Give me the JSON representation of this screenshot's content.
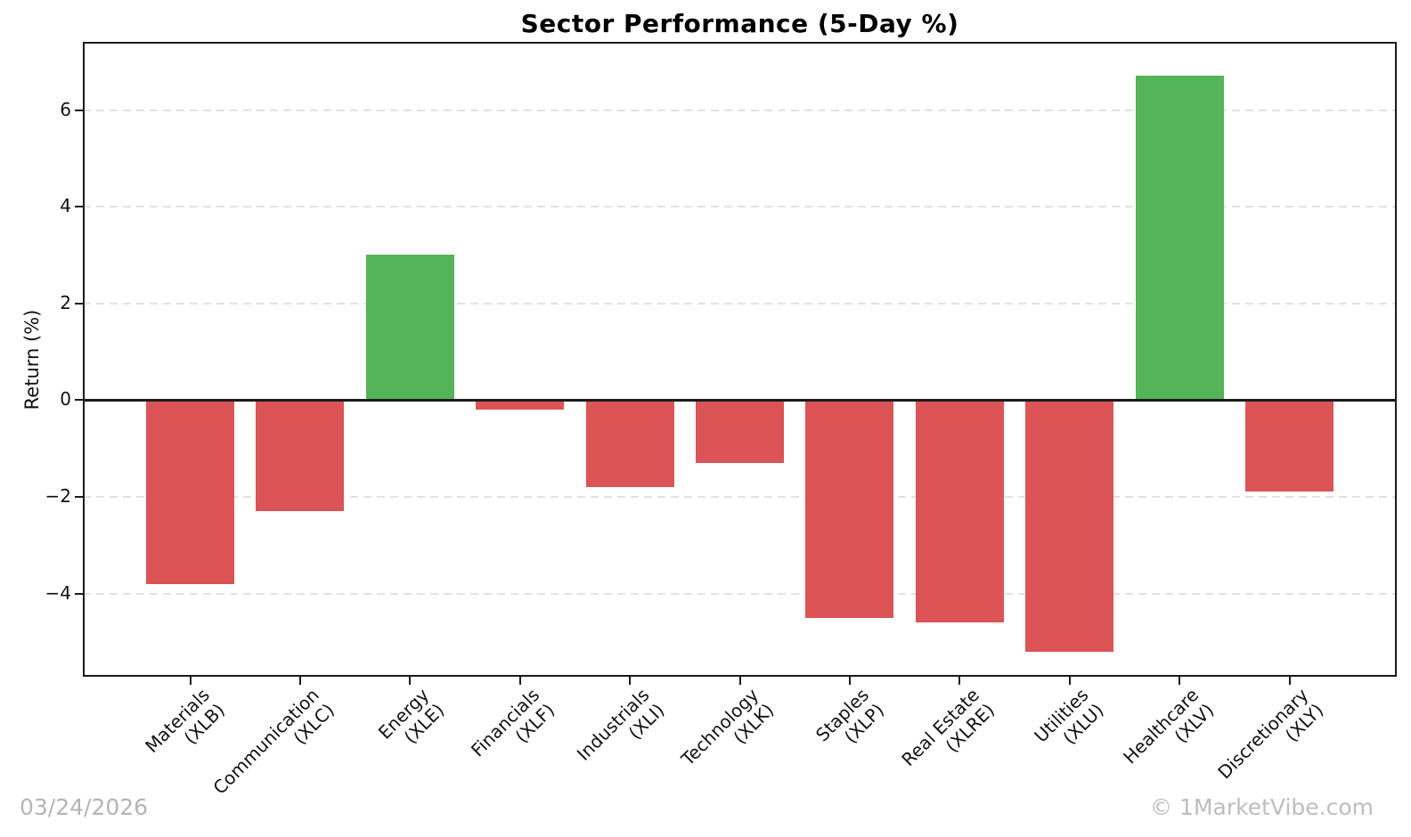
{
  "title": "Sector Performance (5-Day %)",
  "footer": {
    "date": "03/24/2026",
    "watermark": "© 1MarketVibe.com"
  },
  "chart_data": {
    "type": "bar",
    "title": "Sector Performance (5-Day %)",
    "xlabel": "",
    "ylabel": "Return (%)",
    "categories": [
      "Materials (XLB)",
      "Communication (XLC)",
      "Energy (XLE)",
      "Financials (XLF)",
      "Industrials (XLI)",
      "Technology (XLK)",
      "Staples (XLP)",
      "Real Estate (XLRE)",
      "Utilities (XLU)",
      "Healthcare (XLV)",
      "Discretionary (XLY)"
    ],
    "category_lines": [
      [
        "Materials",
        "(XLB)"
      ],
      [
        "Communication",
        "(XLC)"
      ],
      [
        "Energy",
        "(XLE)"
      ],
      [
        "Financials",
        "(XLF)"
      ],
      [
        "Industrials",
        "(XLI)"
      ],
      [
        "Technology",
        "(XLK)"
      ],
      [
        "Staples",
        "(XLP)"
      ],
      [
        "Real Estate",
        "(XLRE)"
      ],
      [
        "Utilities",
        "(XLU)"
      ],
      [
        "Healthcare",
        "(XLV)"
      ],
      [
        "Discretionary",
        "(XLY)"
      ]
    ],
    "tickers": [
      "XLB",
      "XLC",
      "XLE",
      "XLF",
      "XLI",
      "XLK",
      "XLP",
      "XLRE",
      "XLU",
      "XLV",
      "XLY"
    ],
    "values": [
      -3.8,
      -2.3,
      3.0,
      -0.2,
      -1.8,
      -1.3,
      -4.5,
      -4.6,
      -5.2,
      6.7,
      -1.9
    ],
    "yticks": [
      6,
      4,
      2,
      0,
      -2,
      -4
    ],
    "ylim": [
      -5.7,
      7.4
    ],
    "x_tick_label_rotation": 45,
    "grid": {
      "axis": "y",
      "style": "dashed",
      "color": "#e2e2e2"
    },
    "zero_line": true,
    "colors": {
      "positive": "#55b358",
      "negative": "#db5456"
    }
  }
}
